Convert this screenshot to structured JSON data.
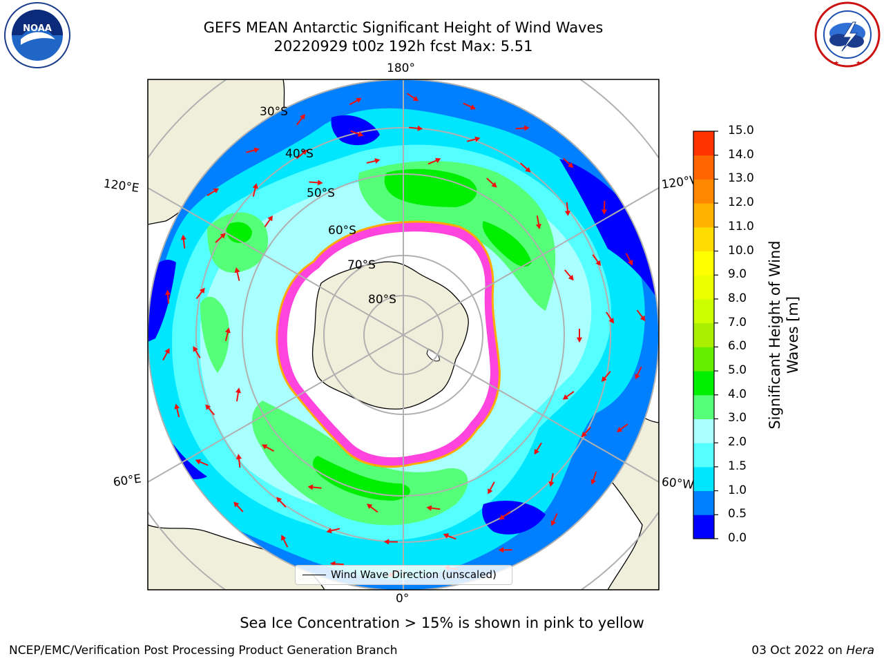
{
  "header": {
    "title": "GEFS MEAN Antarctic Significant Height of Wind Waves",
    "subtitle": "20220929 t00z 192h fcst   Max: 5.51"
  },
  "map": {
    "projection": "south-polar-stereographic",
    "longitude_labels": {
      "top": "180°",
      "bottom": "0°",
      "left_upper": "120°E",
      "left_lower": "60°E",
      "right_upper": "120°W",
      "right_lower": "60°W"
    },
    "latitude_labels": [
      "30°S",
      "40°S",
      "50°S",
      "60°S",
      "70°S",
      "80°S"
    ],
    "legend_label": "Wind Wave Direction (unscaled)",
    "colors": {
      "land": "#efefdb",
      "ice": "#ff44dd",
      "ice_edge": "#ffaa00",
      "arrow": "#ee1111",
      "grid": "#b0b0b0"
    }
  },
  "colorbar": {
    "label": "Significant Height of Wind Waves [m]",
    "ticks": [
      "0.0",
      "0.5",
      "1.0",
      "1.5",
      "2.0",
      "3.0",
      "4.0",
      "5.0",
      "6.0",
      "7.0",
      "8.0",
      "9.0",
      "10.0",
      "11.0",
      "12.0",
      "13.0",
      "14.0",
      "15.0"
    ],
    "colors": [
      "#0000ff",
      "#0080ff",
      "#00e6ff",
      "#55ffff",
      "#aaffff",
      "#55ff77",
      "#00ee00",
      "#66ee00",
      "#aaee00",
      "#ccff00",
      "#eeff00",
      "#ffff00",
      "#ffdd00",
      "#ffb300",
      "#ff8800",
      "#ff6600",
      "#ff3300"
    ]
  },
  "footer": {
    "ice_note": "Sea Ice Concentration > 15% is shown in pink to yellow",
    "credit": "NCEP/EMC/Verification Post Processing Product Generation Branch",
    "date": "03 Oct 2022 on",
    "machine": "Hera"
  },
  "logos": {
    "left_text": "NOAA",
    "right_text": "NATIONAL WEATHER SERVICE"
  }
}
